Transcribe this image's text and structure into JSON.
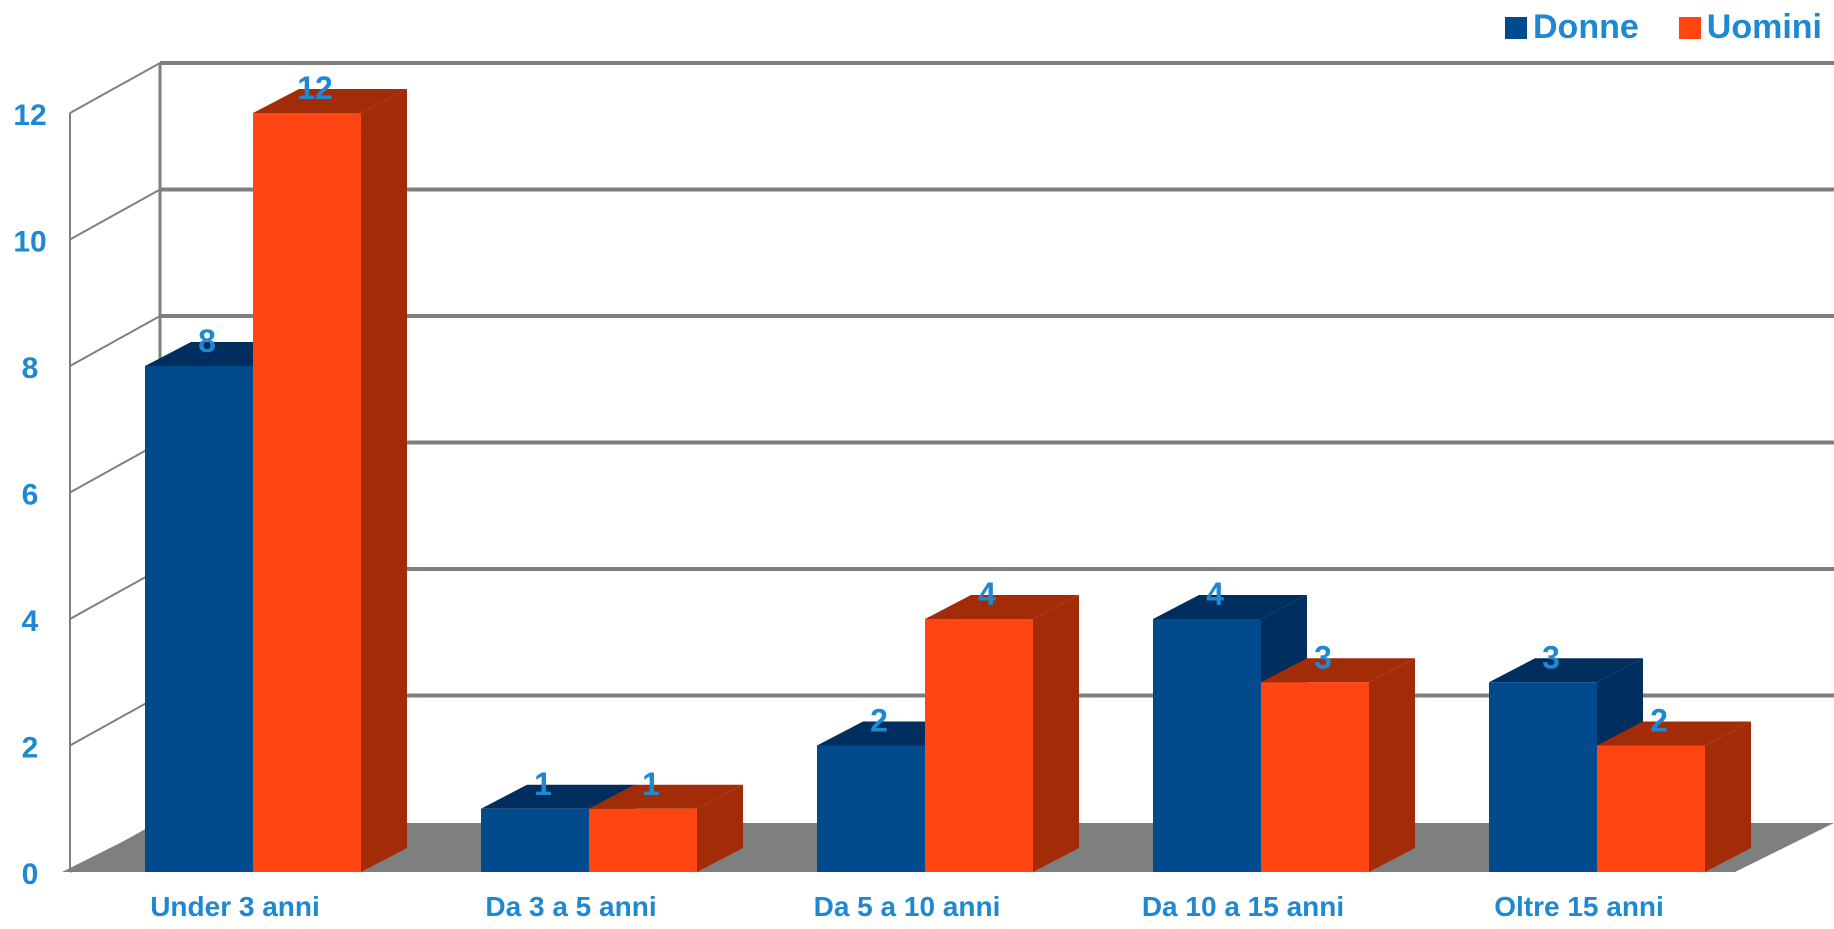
{
  "chart_data": {
    "type": "bar",
    "categories": [
      "Under 3 anni",
      "Da 3 a 5 anni",
      "Da 5 a 10 anni",
      "Da 10 a 15 anni",
      "Oltre 15 anni"
    ],
    "series": [
      {
        "name": "Donne",
        "values": [
          8,
          1,
          2,
          4,
          3
        ],
        "color": "#004A8D",
        "side_color": "#002E5E"
      },
      {
        "name": "Uomini",
        "values": [
          12,
          1,
          4,
          3,
          2
        ],
        "color": "#FF4511",
        "side_color": "#A32C08"
      }
    ],
    "yticks": [
      "0",
      "2",
      "4",
      "6",
      "8",
      "10",
      "12"
    ],
    "ylim": [
      0,
      12
    ],
    "legend_position": "top-right",
    "grid": true,
    "label_color": "#1E88D2",
    "floor_color": "#7F7F7F"
  }
}
